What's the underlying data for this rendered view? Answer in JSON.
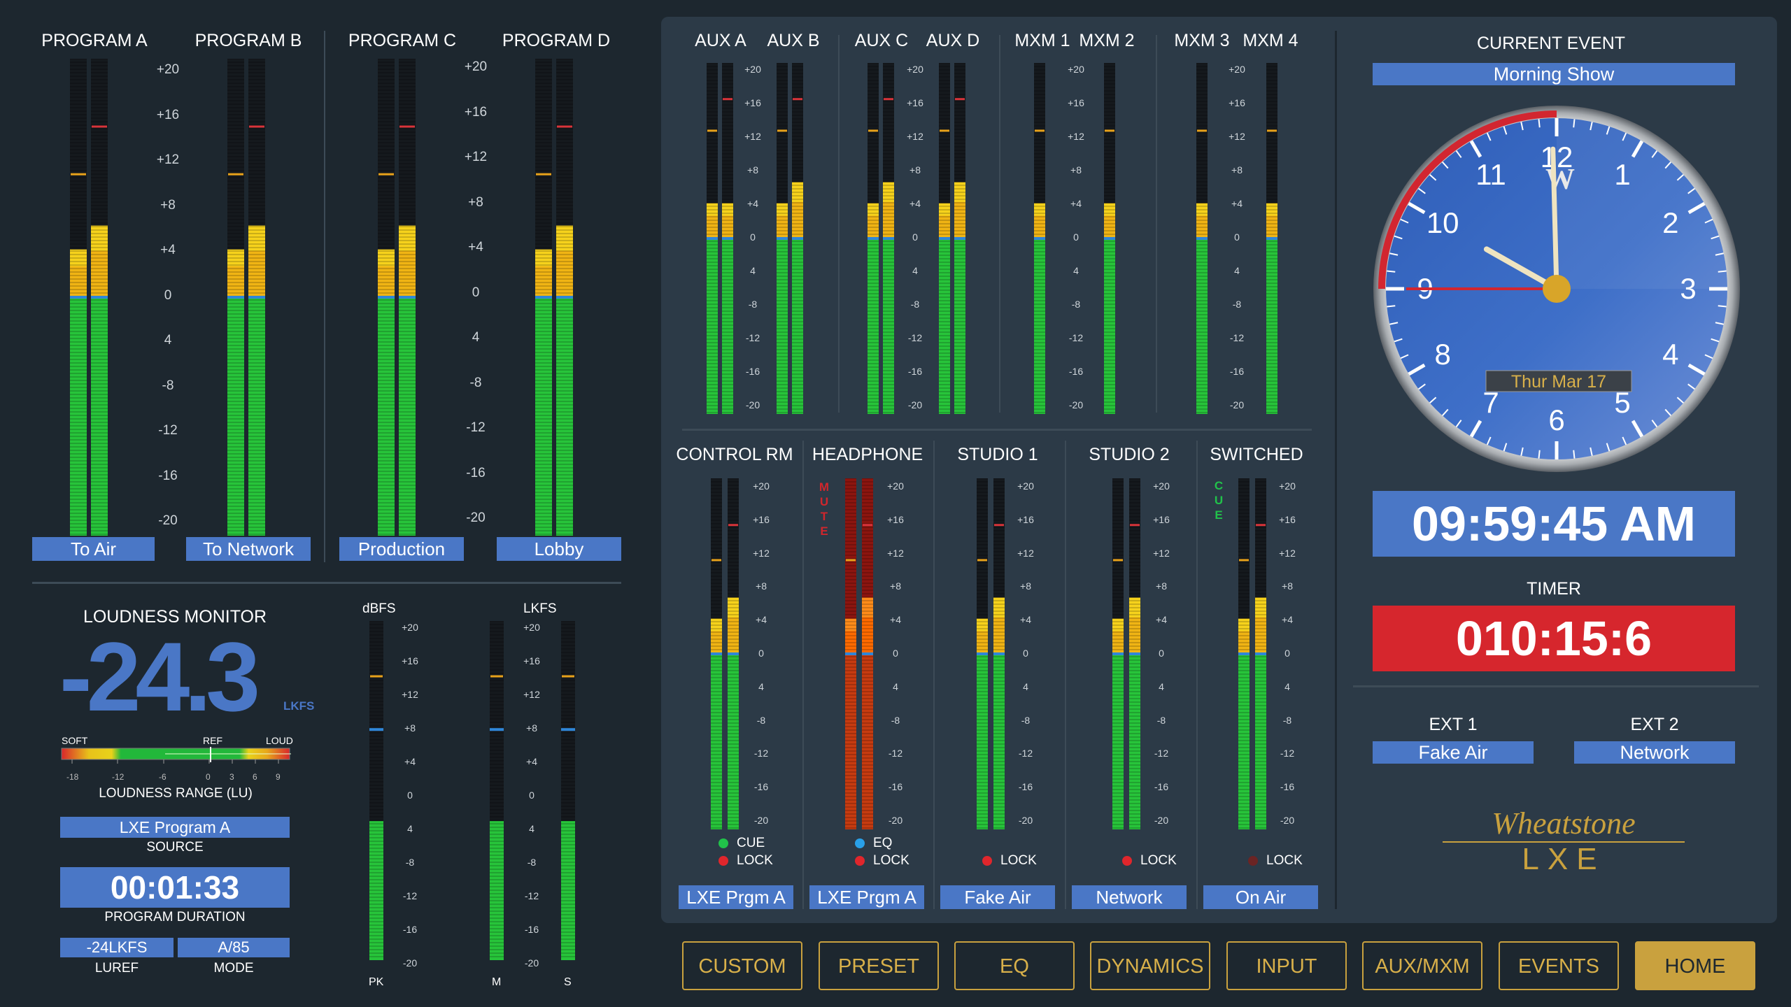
{
  "program_meters": [
    {
      "title": "PROGRAM A",
      "source": "To Air",
      "level": [
        0.52,
        0.53
      ],
      "peak_hold": [
        0.72,
        0.72
      ]
    },
    {
      "title": "PROGRAM B",
      "source": "To Network",
      "level": [
        0.52,
        0.53
      ],
      "peak_hold": [
        0.72,
        0.72
      ]
    },
    {
      "title": "PROGRAM C",
      "source": "Production",
      "level": [
        0.52,
        0.53
      ],
      "peak_hold": [
        0.72,
        0.72
      ]
    },
    {
      "title": "PROGRAM D",
      "source": "Lobby",
      "level": [
        0.52,
        0.53
      ],
      "peak_hold": [
        0.72,
        0.72
      ]
    }
  ],
  "program_scale": [
    "+20",
    "+16",
    "+12",
    "+8",
    "+4",
    "0",
    "4",
    "-8",
    "-12",
    "-16",
    "-20"
  ],
  "small_scale": [
    "+20",
    "+16",
    "+12",
    "+8",
    "+4",
    "0",
    "4",
    "-8",
    "-12",
    "-16",
    "-20"
  ],
  "aux_meters": [
    {
      "title": "AUX A"
    },
    {
      "title": "AUX B"
    },
    {
      "title": "AUX C"
    },
    {
      "title": "AUX D"
    },
    {
      "title": "MXM 1"
    },
    {
      "title": "MXM 2"
    },
    {
      "title": "MXM 3"
    },
    {
      "title": "MXM 4"
    }
  ],
  "monitor_meters": [
    {
      "title": "CONTROL RM",
      "source": "LXE Prgm A",
      "indicators": [
        {
          "label": "CUE",
          "color": "#21c24a"
        },
        {
          "label": "LOCK",
          "color": "#e0262c"
        }
      ]
    },
    {
      "title": "HEADPHONE",
      "source": "LXE Prgm A",
      "side_text": "MUTE",
      "indicators": [
        {
          "label": "EQ",
          "color": "#29a0e8"
        },
        {
          "label": "LOCK",
          "color": "#e0262c"
        }
      ]
    },
    {
      "title": "STUDIO 1",
      "source": "Fake Air",
      "indicators": [
        {
          "label": "LOCK",
          "color": "#e0262c"
        }
      ]
    },
    {
      "title": "STUDIO 2",
      "source": "Network",
      "indicators": [
        {
          "label": "LOCK",
          "color": "#e0262c"
        }
      ]
    },
    {
      "title": "SWITCHED",
      "source": "On Air",
      "side_text": "CUE",
      "indicators": [
        {
          "label": "LOCK",
          "color": "#6b2424"
        }
      ]
    }
  ],
  "loudness": {
    "title": "LOUDNESS MONITOR",
    "value": "-24.3",
    "unit": "LKFS",
    "bar_labels": {
      "soft": "SOFT",
      "ref": "REF",
      "loud": "LOUD"
    },
    "bar_ticks": [
      "-18",
      "-12",
      "-6",
      "0",
      "3",
      "6",
      "9"
    ],
    "range_label": "LOUDNESS RANGE (LU)",
    "source_value": "LXE Program A",
    "source_label": "SOURCE",
    "duration_value": "00:01:33",
    "duration_label": "PROGRAM DURATION",
    "luref_value": "-24LKFS",
    "luref_label": "LUREF",
    "mode_value": "A/85",
    "mode_label": "MODE",
    "dbfs_label": "dBFS",
    "lkfs_label": "LKFS",
    "pk_label": "PK",
    "m_label": "M",
    "s_label": "S"
  },
  "clock": {
    "event_label": "CURRENT EVENT",
    "event_value": "Morning Show",
    "numerals": [
      "12",
      "1",
      "2",
      "3",
      "4",
      "5",
      "6",
      "7",
      "8",
      "9",
      "10",
      "11"
    ],
    "date": "Thur  Mar 17",
    "hour": 9,
    "minute": 59,
    "second": 45,
    "time_text": "09:59:45 AM",
    "timer_label": "TIMER",
    "timer_value": "010:15:6",
    "ext1_label": "EXT 1",
    "ext1_value": "Fake Air",
    "ext2_label": "EXT 2",
    "ext2_value": "Network",
    "logo_brand": "Wheatstone",
    "logo_model": "LXE",
    "face_logo": "W"
  },
  "nav": [
    "CUSTOM",
    "PRESET",
    "EQ",
    "DYNAMICS",
    "INPUT",
    "AUX/MXM",
    "EVENTS",
    "HOME"
  ],
  "nav_active": "HOME",
  "colors": {
    "accent": "#4a77c6",
    "timer": "#d6262d",
    "gold": "#c9a13e",
    "clock_face": "#3a6bc2"
  }
}
